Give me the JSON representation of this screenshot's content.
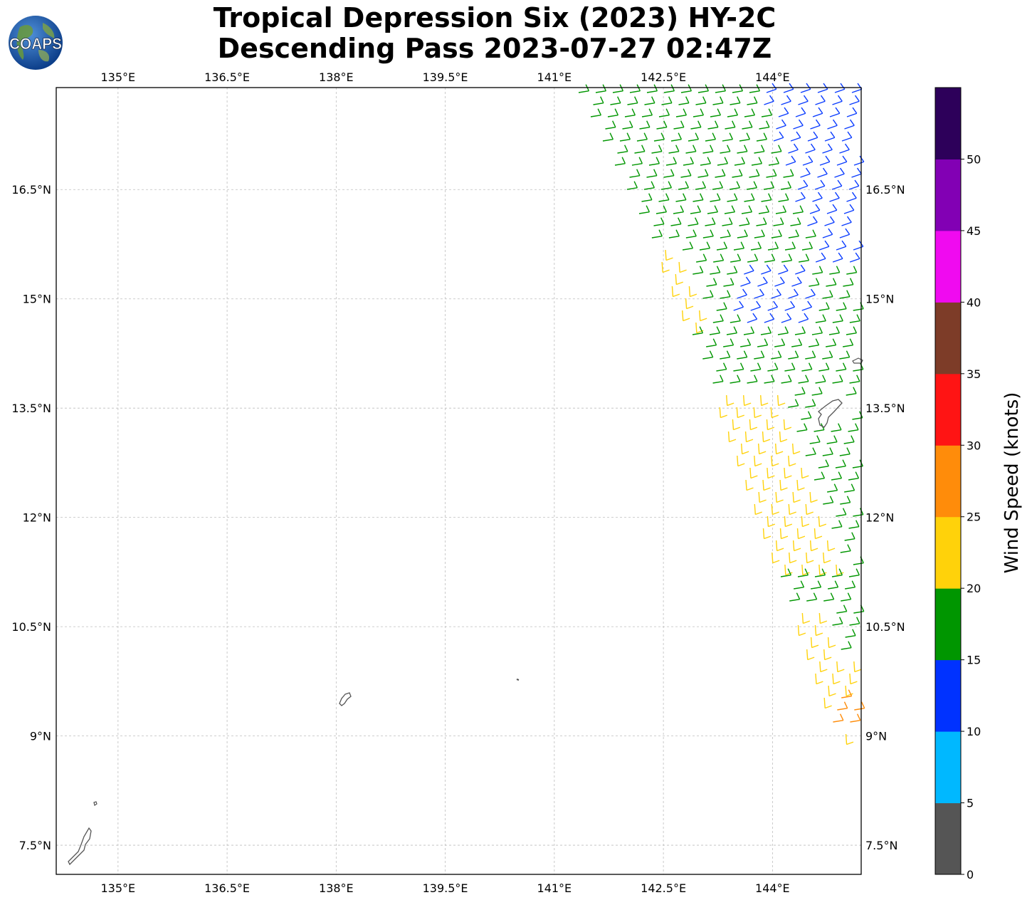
{
  "title": {
    "line1": "Tropical Depression Six (2023) HY-2C",
    "line2": "Descending Pass 2023-07-27 02:47Z"
  },
  "logo": {
    "text": "COAPS",
    "icon": "globe-icon"
  },
  "map": {
    "lon_ticks": [
      "135°E",
      "136.5°E",
      "138°E",
      "139.5°E",
      "141°E",
      "142.5°E",
      "144°E"
    ],
    "lat_ticks": [
      "16.5°N",
      "15°N",
      "13.5°N",
      "12°N",
      "10.5°N",
      "9°N",
      "7.5°N"
    ],
    "lon_range": [
      134.15,
      145.22
    ],
    "lat_range": [
      7.1,
      17.9
    ],
    "gridlines": true,
    "wind_barbs": [
      {
        "region": "north swath",
        "speed_range_knots": [
          10,
          20
        ],
        "colors": [
          "blue",
          "green"
        ]
      },
      {
        "region": "central swath",
        "speed_range_knots": [
          15,
          25
        ],
        "colors": [
          "green",
          "yellow"
        ]
      },
      {
        "region": "southern tip",
        "speed_range_knots": [
          20,
          30
        ],
        "colors": [
          "yellow",
          "orange"
        ]
      }
    ]
  },
  "colorbar": {
    "label": "Wind Speed (knots)",
    "ticks": [
      "0",
      "5",
      "10",
      "15",
      "20",
      "25",
      "30",
      "35",
      "40",
      "45",
      "50"
    ],
    "colors": [
      "#555555",
      "#00b8ff",
      "#0032ff",
      "#009600",
      "#ffd20a",
      "#ff8c0a",
      "#ff1414",
      "#7d3c28",
      "#f00af0",
      "#8200b4",
      "#2d005a"
    ]
  }
}
